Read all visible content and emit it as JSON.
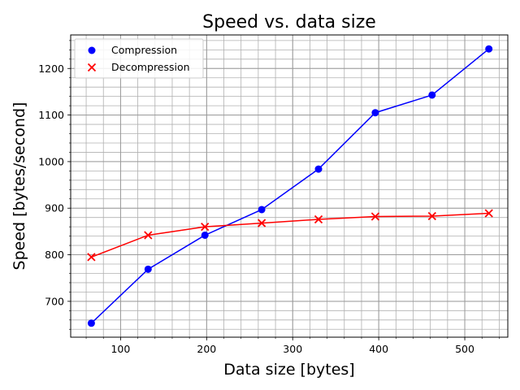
{
  "chart_data": {
    "type": "line",
    "title": "Speed vs. data size",
    "xlabel": "Data size [bytes]",
    "ylabel": "Speed [bytes/second]",
    "xlim": [
      42,
      550
    ],
    "ylim": [
      623,
      1272
    ],
    "x_ticks": [
      100,
      200,
      300,
      400,
      500
    ],
    "y_ticks": [
      700,
      800,
      900,
      1000,
      1100,
      1200
    ],
    "grid": true,
    "legend_position": "top-left",
    "series": [
      {
        "name": "Compression",
        "color": "#0000ff",
        "marker": "circle",
        "x": [
          66,
          132,
          198,
          264,
          330,
          396,
          462,
          528
        ],
        "y": [
          653,
          769,
          842,
          897,
          984,
          1105,
          1143,
          1242
        ]
      },
      {
        "name": "Decompression",
        "color": "#ff0000",
        "marker": "x",
        "x": [
          66,
          132,
          198,
          264,
          330,
          396,
          462,
          528
        ],
        "y": [
          795,
          842,
          860,
          868,
          876,
          882,
          883,
          889
        ]
      }
    ]
  }
}
